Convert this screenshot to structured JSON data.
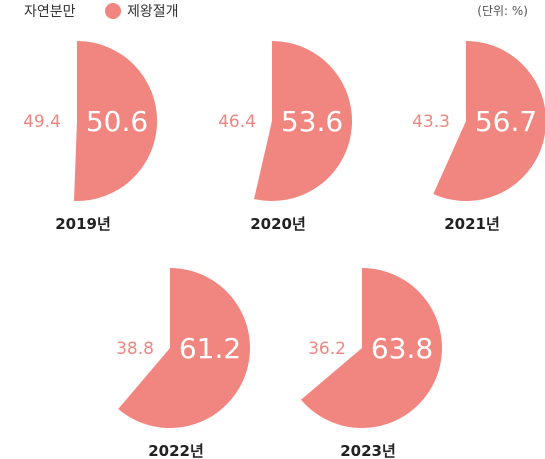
{
  "chart_data": {
    "type": "pie",
    "unit": "(단위: %)",
    "legend": {
      "items": [
        {
          "name": "자연분만",
          "color": "#ffffff",
          "marker": false
        },
        {
          "name": "제왕절개",
          "color": "#f0867f",
          "marker": true
        }
      ]
    },
    "colors": {
      "cesarean": "#f0867f",
      "natural_label": "#f0867f",
      "cesarean_label": "#ffffff"
    },
    "series_names": [
      "자연분만",
      "제왕절개"
    ],
    "charts": [
      {
        "year": "2019년",
        "natural": "49.4",
        "cesarean": "50.6",
        "natural_value": 49.4,
        "cesarean_value": 50.6
      },
      {
        "year": "2020년",
        "natural": "46.4",
        "cesarean": "53.6",
        "natural_value": 46.4,
        "cesarean_value": 53.6
      },
      {
        "year": "2021년",
        "natural": "43.3",
        "cesarean": "56.7",
        "natural_value": 43.3,
        "cesarean_value": 56.7
      },
      {
        "year": "2022년",
        "natural": "38.8",
        "cesarean": "61.2",
        "natural_value": 38.8,
        "cesarean_value": 61.2
      },
      {
        "year": "2023년",
        "natural": "36.2",
        "cesarean": "63.8",
        "natural_value": 36.2,
        "cesarean_value": 63.8
      }
    ]
  }
}
